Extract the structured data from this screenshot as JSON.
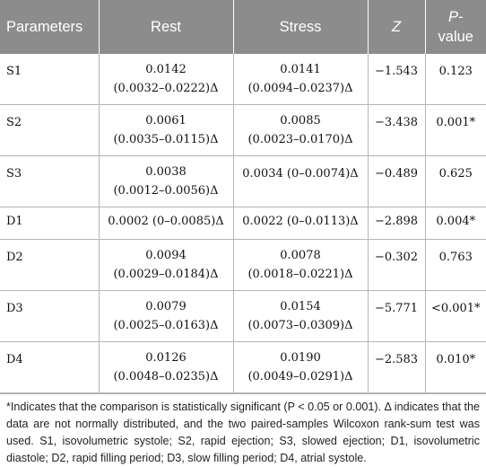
{
  "table": {
    "headers": [
      {
        "label": "Parameters"
      },
      {
        "label": "Rest"
      },
      {
        "label": "Stress"
      },
      {
        "label": "Z"
      },
      {
        "label": "P-value",
        "line1": "P-",
        "line2": "value"
      }
    ],
    "rows": [
      {
        "param": "S1",
        "rest_line1": "0.0142",
        "rest_line2": "(0.0032–0.0222)Δ",
        "stress_line1": "0.0141",
        "stress_line2": "(0.0094–0.0237)Δ",
        "z": "−1.543",
        "p": "0.123"
      },
      {
        "param": "S2",
        "rest_line1": "0.0061",
        "rest_line2": "(0.0035–0.0115)Δ",
        "stress_line1": "0.0085",
        "stress_line2": "(0.0023–0.0170)Δ",
        "z": "−3.438",
        "p": "0.001*"
      },
      {
        "param": "S3",
        "rest_line1": "0.0038",
        "rest_line2": "(0.0012–0.0056)Δ",
        "stress_line1": "0.0034 (0–0.0074)Δ",
        "stress_line2": "",
        "z": "−0.489",
        "p": "0.625"
      },
      {
        "param": "D1",
        "rest_line1": "0.0002 (0–0.0085)Δ",
        "rest_line2": "",
        "stress_line1": "0.0022 (0–0.0113)Δ",
        "stress_line2": "",
        "z": "−2.898",
        "p": "0.004*"
      },
      {
        "param": "D2",
        "rest_line1": "0.0094",
        "rest_line2": "(0.0029–0.0184)Δ",
        "stress_line1": "0.0078",
        "stress_line2": "(0.0018–0.0221)Δ",
        "z": "−0.302",
        "p": "0.763"
      },
      {
        "param": "D3",
        "rest_line1": "0.0079",
        "rest_line2": "(0.0025–0.0163)Δ",
        "stress_line1": "0.0154",
        "stress_line2": "(0.0073–0.0309)Δ",
        "z": "−5.771",
        "p": "<0.001*"
      },
      {
        "param": "D4",
        "rest_line1": "0.0126",
        "rest_line2": "(0.0048–0.0235)Δ",
        "stress_line1": "0.0190",
        "stress_line2": "(0.0049–0.0291)Δ",
        "z": "−2.583",
        "p": "0.010*"
      }
    ]
  },
  "footnote": "*Indicates that the comparison is statistically significant (P < 0.05 or 0.001). Δ indicates that the data are not normally distributed, and the two paired-samples Wilcoxon rank-sum test was used. S1, isovolumetric systole; S2, rapid ejection; S3, slowed ejection; D1, isovolumetric diastole; D2, rapid filling period; D3, slow filling period; D4, atrial systole.",
  "colors": {
    "header_bg": "#8c8c8c",
    "header_text": "#ffffff",
    "rule": "#b5b5b5"
  }
}
